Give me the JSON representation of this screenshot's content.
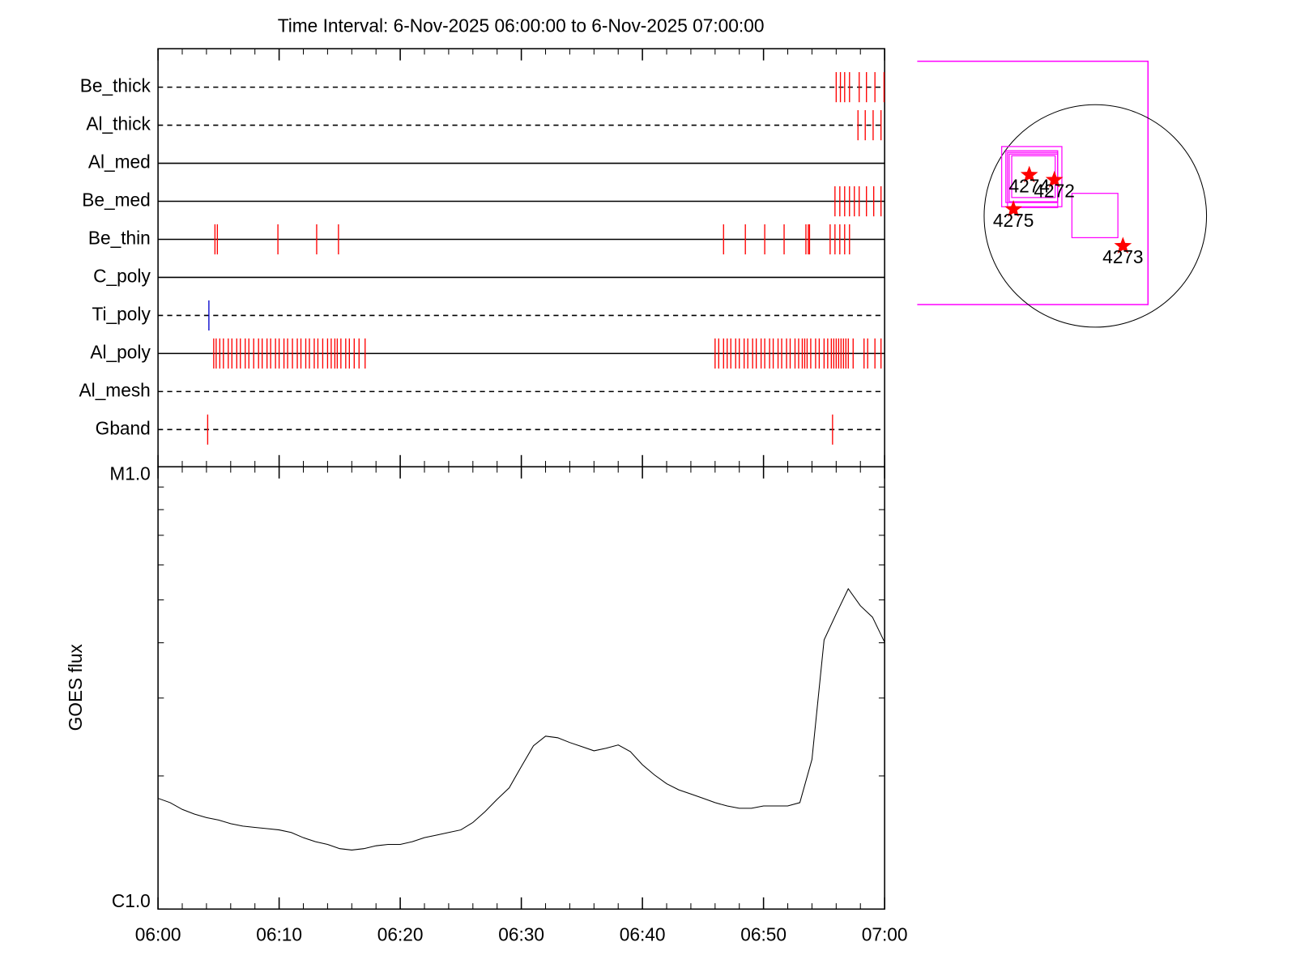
{
  "chart_data": [
    {
      "type": "event",
      "title": "Time Interval:  6-Nov-2025 06:00:00 to  6-Nov-2025 07:00:00",
      "series": [
        {
          "name": "Be_thick",
          "linestyle": "dashed",
          "color": "#ff0000",
          "x": [
            56.0,
            56.35,
            56.7,
            57.1,
            57.9,
            58.5,
            59.2,
            59.95
          ]
        },
        {
          "name": "Al_thick",
          "linestyle": "dashed",
          "color": "#ff0000",
          "x": [
            57.8,
            58.4,
            59.05,
            59.7
          ]
        },
        {
          "name": "Al_med",
          "linestyle": "solid",
          "color": "#ff0000",
          "x": []
        },
        {
          "name": "Be_med",
          "linestyle": "solid",
          "color": "#ff0000",
          "x": [
            55.9,
            56.3,
            56.7,
            57.1,
            57.5,
            57.9,
            58.5,
            59.1,
            59.7
          ]
        },
        {
          "name": "Be_thin",
          "linestyle": "solid",
          "color": "#ff0000",
          "x": [
            4.7,
            4.9,
            9.9,
            13.1,
            14.9,
            46.7,
            48.5,
            50.1,
            51.7,
            53.5,
            53.7,
            53.8,
            55.5,
            55.9,
            56.3,
            56.7,
            57.1
          ]
        },
        {
          "name": "C_poly",
          "linestyle": "solid",
          "color": "#ff0000",
          "x": []
        },
        {
          "name": "Ti_poly",
          "linestyle": "dashed",
          "color": "#0000cc",
          "x": [
            4.2
          ]
        },
        {
          "name": "Al_poly",
          "linestyle": "solid",
          "color": "#ff0000",
          "x": [
            4.6,
            4.8,
            5.1,
            5.4,
            5.8,
            6.1,
            6.5,
            6.8,
            7.2,
            7.5,
            7.9,
            8.3,
            8.6,
            9.0,
            9.3,
            9.7,
            10.0,
            10.4,
            10.7,
            11.1,
            11.5,
            11.8,
            12.2,
            12.5,
            12.9,
            13.2,
            13.6,
            14.0,
            14.3,
            14.6,
            14.8,
            15.1,
            15.5,
            15.8,
            16.2,
            16.6,
            17.1,
            46.0,
            46.3,
            46.7,
            47.0,
            47.3,
            47.7,
            48.0,
            48.4,
            48.7,
            49.1,
            49.4,
            49.8,
            50.1,
            50.5,
            50.8,
            51.2,
            51.5,
            51.9,
            52.2,
            52.6,
            52.9,
            53.2,
            53.4,
            53.6,
            53.9,
            54.3,
            54.6,
            55.0,
            55.3,
            55.6,
            55.8,
            56.0,
            56.2,
            56.4,
            56.6,
            56.8,
            57.0,
            57.4,
            58.3,
            58.6,
            59.2,
            59.7
          ]
        },
        {
          "name": "Al_mesh",
          "linestyle": "dashed",
          "color": "#ff0000",
          "x": []
        },
        {
          "name": "Gband",
          "linestyle": "dashed",
          "color": "#ff0000",
          "x": [
            4.1,
            55.7
          ]
        }
      ]
    },
    {
      "type": "line",
      "ylabel": "GOES flux",
      "color": "#000000",
      "log_y": true,
      "xlim": [
        0,
        60
      ],
      "xticks": [
        {
          "value": 0,
          "label": "06:00"
        },
        {
          "value": 10,
          "label": "06:10"
        },
        {
          "value": 20,
          "label": "06:20"
        },
        {
          "value": 30,
          "label": "06:30"
        },
        {
          "value": 40,
          "label": "06:40"
        },
        {
          "value": 50,
          "label": "06:50"
        },
        {
          "value": 60,
          "label": "07:00"
        }
      ],
      "minor_xticks": [
        2,
        4,
        6,
        8,
        12,
        14,
        16,
        18,
        22,
        24,
        26,
        28,
        32,
        34,
        36,
        38,
        42,
        44,
        46,
        48,
        52,
        54,
        56,
        58
      ],
      "ylim": [
        1e-06,
        1e-05
      ],
      "yticks": [
        {
          "value": 1e-06,
          "label": "C1.0"
        },
        {
          "value": 1e-05,
          "label": "M1.0"
        }
      ],
      "minor_yticks": [
        2e-06,
        3e-06,
        4e-06,
        5e-06,
        6e-06,
        7e-06,
        8e-06,
        9e-06
      ],
      "x": [
        0,
        1,
        2,
        3,
        4,
        5,
        6,
        7,
        8,
        9,
        10,
        11,
        12,
        13,
        14,
        15,
        16,
        17,
        18,
        19,
        20,
        21,
        22,
        23,
        24,
        25,
        26,
        27,
        28,
        29,
        30,
        31,
        32,
        33,
        34,
        35,
        36,
        37,
        38,
        39,
        40,
        41,
        42,
        43,
        44,
        45,
        46,
        47,
        48,
        49,
        50,
        51,
        52,
        53,
        54,
        55,
        56,
        57,
        58,
        59,
        60
      ],
      "values": [
        1.78e-06,
        1.74e-06,
        1.68e-06,
        1.64e-06,
        1.61e-06,
        1.59e-06,
        1.56e-06,
        1.54e-06,
        1.53e-06,
        1.52e-06,
        1.51e-06,
        1.49e-06,
        1.45e-06,
        1.42e-06,
        1.4e-06,
        1.37e-06,
        1.36e-06,
        1.37e-06,
        1.39e-06,
        1.4e-06,
        1.4e-06,
        1.42e-06,
        1.45e-06,
        1.47e-06,
        1.49e-06,
        1.51e-06,
        1.57e-06,
        1.66e-06,
        1.77e-06,
        1.88e-06,
        2.1e-06,
        2.34e-06,
        2.46e-06,
        2.44e-06,
        2.38e-06,
        2.33e-06,
        2.28e-06,
        2.31e-06,
        2.35e-06,
        2.27e-06,
        2.12e-06,
        2.01e-06,
        1.92e-06,
        1.86e-06,
        1.82e-06,
        1.78e-06,
        1.74e-06,
        1.71e-06,
        1.69e-06,
        1.69e-06,
        1.71e-06,
        1.71e-06,
        1.71e-06,
        1.74e-06,
        2.18e-06,
        4.06e-06,
        4.65e-06,
        5.3e-06,
        4.85e-06,
        4.57e-06,
        4.01e-06
      ]
    },
    {
      "type": "map",
      "color": "#ff00ff",
      "star_color": "#ff0000",
      "regions": [
        {
          "label": "4274"
        },
        {
          "label": "4272"
        },
        {
          "label": "4275"
        },
        {
          "label": "4273"
        }
      ]
    }
  ]
}
